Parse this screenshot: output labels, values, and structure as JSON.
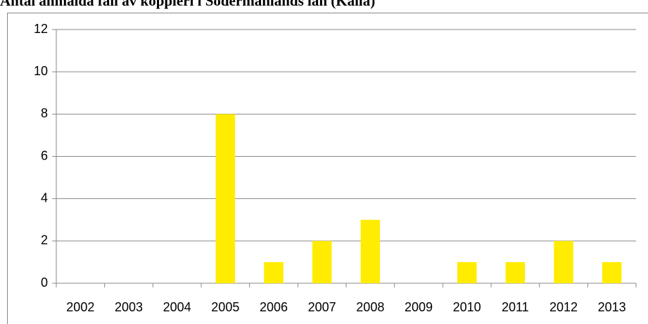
{
  "chart_data": {
    "type": "bar",
    "title": "Antal anmälda fall av koppleri i Södermanlands län (Källa)",
    "categories": [
      "2002",
      "2003",
      "2004",
      "2005",
      "2006",
      "2007",
      "2008",
      "2009",
      "2010",
      "2011",
      "2012",
      "2013"
    ],
    "values": [
      0,
      0,
      0,
      8,
      1,
      2,
      3,
      0,
      1,
      1,
      2,
      1
    ],
    "color": "#ffec00",
    "ylim": [
      0,
      12
    ],
    "yticks": [
      0,
      2,
      4,
      6,
      8,
      10,
      12
    ],
    "grid": true
  }
}
